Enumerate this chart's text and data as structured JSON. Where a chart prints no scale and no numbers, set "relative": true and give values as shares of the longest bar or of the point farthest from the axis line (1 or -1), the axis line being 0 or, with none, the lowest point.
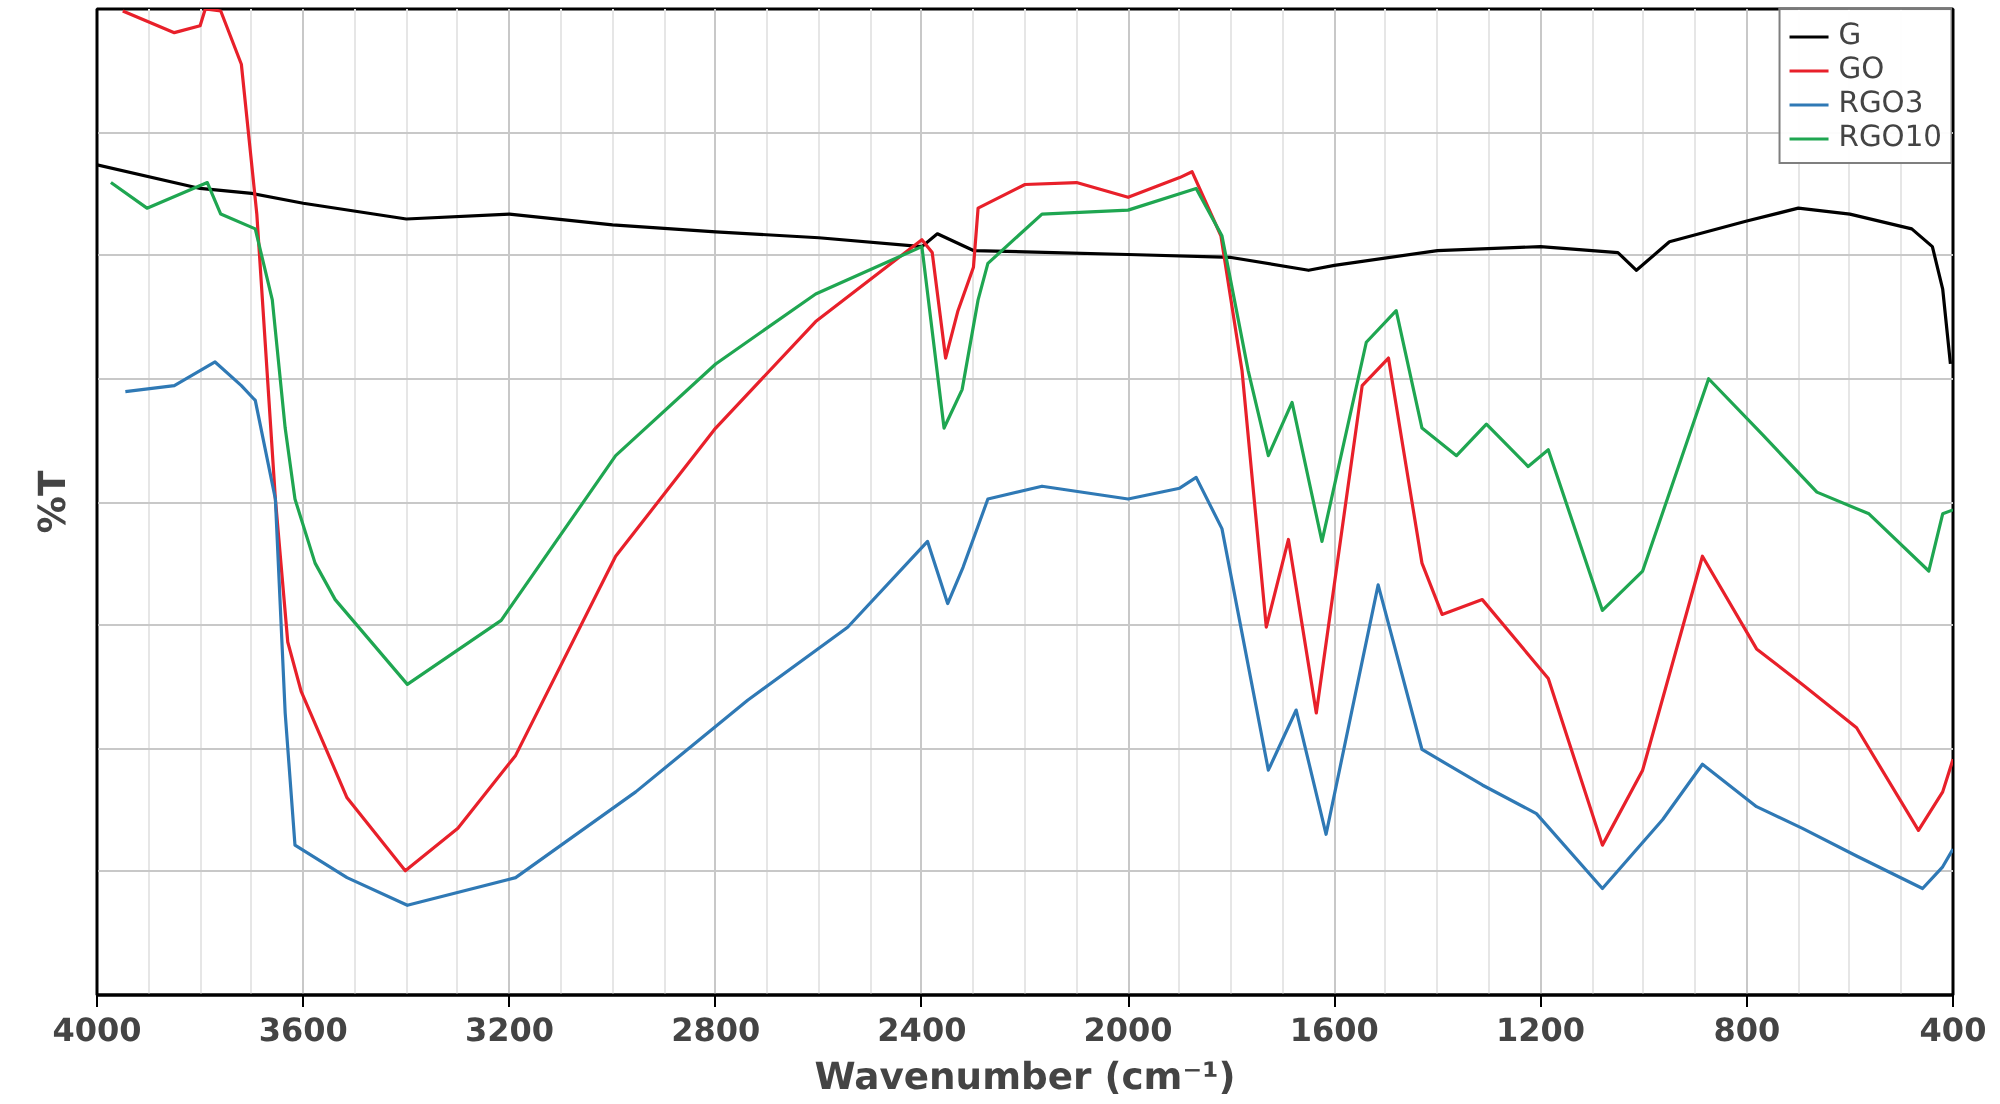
{
  "chart_data": {
    "type": "line",
    "relative": true,
    "xlabel": "Wavenumber (cm⁻¹)",
    "ylabel": "%T",
    "xlim": [
      4000,
      400
    ],
    "xticks": [
      4000,
      3600,
      3200,
      2800,
      2400,
      2000,
      1600,
      1200,
      800,
      400
    ],
    "grid": true,
    "legend": "top right",
    "tick_labels": "x",
    "series": [
      {
        "name": "G",
        "color": "#000000",
        "x": [
          4000,
          3800,
          3700,
          3600,
          3400,
          3200,
          3000,
          2800,
          2600,
          2400,
          2370,
          2300,
          2000,
          1800,
          1650,
          1600,
          1400,
          1200,
          1050,
          1014,
          950,
          800,
          700,
          600,
          480,
          440,
          420,
          405
        ],
        "values": [
          0.842,
          0.818,
          0.813,
          0.803,
          0.787,
          0.792,
          0.781,
          0.774,
          0.768,
          0.759,
          0.772,
          0.755,
          0.751,
          0.748,
          0.735,
          0.74,
          0.755,
          0.759,
          0.753,
          0.735,
          0.764,
          0.785,
          0.798,
          0.792,
          0.777,
          0.759,
          0.716,
          0.64
        ]
      },
      {
        "name": "GO",
        "color": "#e8202a",
        "x": [
          3950,
          3850,
          3800,
          3790,
          3760,
          3720,
          3690,
          3654,
          3630,
          3604,
          3515,
          3402,
          3300,
          3188,
          2994,
          2800,
          2606,
          2400,
          2380,
          2354,
          2330,
          2300,
          2291,
          2200,
          2100,
          2000,
          1900,
          1876,
          1820,
          1779,
          1732,
          1689,
          1635,
          1546,
          1495,
          1430,
          1391,
          1313,
          1185,
          1080,
          1002,
          886,
          781,
          692,
          587,
          467,
          420,
          400
        ],
        "values": [
          0.998,
          0.976,
          0.983,
          1.0,
          0.998,
          0.944,
          0.792,
          0.503,
          0.358,
          0.308,
          0.2,
          0.126,
          0.169,
          0.243,
          0.445,
          0.575,
          0.683,
          0.766,
          0.753,
          0.646,
          0.694,
          0.738,
          0.798,
          0.822,
          0.824,
          0.809,
          0.829,
          0.835,
          0.77,
          0.633,
          0.373,
          0.462,
          0.286,
          0.618,
          0.646,
          0.438,
          0.386,
          0.401,
          0.321,
          0.152,
          0.228,
          0.445,
          0.351,
          0.315,
          0.271,
          0.167,
          0.206,
          0.239
        ]
      },
      {
        "name": "RGO3",
        "color": "#2f79b5",
        "x": [
          3945,
          3850,
          3771,
          3720,
          3693,
          3654,
          3635,
          3616,
          3515,
          3398,
          3188,
          2955,
          2738,
          2544,
          2389,
          2350,
          2320,
          2272,
          2167,
          2000,
          1900,
          1868,
          1818,
          1728,
          1674,
          1616,
          1515,
          1430,
          1313,
          1208,
          1080,
          963,
          886,
          781,
          692,
          587,
          459,
          420,
          400
        ],
        "values": [
          0.612,
          0.618,
          0.642,
          0.618,
          0.603,
          0.503,
          0.286,
          0.152,
          0.119,
          0.091,
          0.119,
          0.206,
          0.299,
          0.373,
          0.46,
          0.397,
          0.434,
          0.503,
          0.516,
          0.503,
          0.514,
          0.525,
          0.473,
          0.228,
          0.289,
          0.163,
          0.416,
          0.249,
          0.213,
          0.184,
          0.108,
          0.178,
          0.234,
          0.191,
          0.169,
          0.141,
          0.108,
          0.13,
          0.148
        ]
      },
      {
        "name": "RGO10",
        "color": "#1fa651",
        "x": [
          3973,
          3903,
          3786,
          3760,
          3693,
          3660,
          3635,
          3616,
          3577,
          3538,
          3398,
          3216,
          2994,
          2800,
          2606,
          2400,
          2357,
          2322,
          2291,
          2272,
          2167,
          2000,
          1868,
          1818,
          1767,
          1728,
          1682,
          1624,
          1538,
          1480,
          1430,
          1363,
          1305,
          1224,
          1185,
          1080,
          1002,
          874,
          769,
          664,
          563,
          447,
          420,
          400
        ],
        "values": [
          0.824,
          0.798,
          0.824,
          0.792,
          0.777,
          0.705,
          0.575,
          0.503,
          0.438,
          0.401,
          0.315,
          0.38,
          0.547,
          0.64,
          0.711,
          0.759,
          0.575,
          0.614,
          0.705,
          0.742,
          0.792,
          0.796,
          0.818,
          0.77,
          0.633,
          0.547,
          0.601,
          0.46,
          0.662,
          0.694,
          0.575,
          0.547,
          0.579,
          0.536,
          0.553,
          0.39,
          0.43,
          0.625,
          0.568,
          0.51,
          0.488,
          0.43,
          0.488,
          0.492
        ]
      }
    ]
  }
}
